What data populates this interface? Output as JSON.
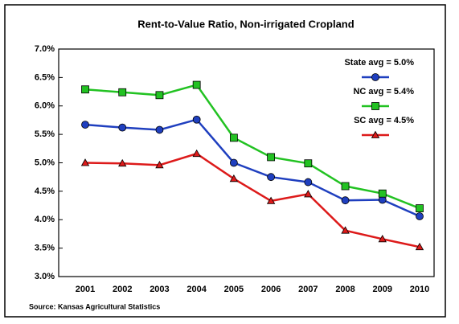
{
  "chart_data": {
    "type": "line",
    "title": "Rent-to-Value Ratio, Non-irrigated Cropland",
    "source": "Source:  Kansas Agricultural Statistics",
    "categories": [
      "2001",
      "2002",
      "2003",
      "2004",
      "2005",
      "2006",
      "2007",
      "2008",
      "2009",
      "2010"
    ],
    "series": [
      {
        "name": "State avg = 5.0%",
        "color": "#1f3fbf",
        "marker": "circle",
        "values": [
          5.67,
          5.62,
          5.58,
          5.76,
          5.0,
          4.75,
          4.66,
          4.34,
          4.35,
          4.06
        ]
      },
      {
        "name": "NC avg = 5.4%",
        "color": "#22c222",
        "marker": "square",
        "values": [
          6.29,
          6.24,
          6.19,
          6.37,
          5.44,
          5.1,
          4.99,
          4.59,
          4.46,
          4.2
        ]
      },
      {
        "name": "SC avg = 4.5%",
        "color": "#dd1a1a",
        "marker": "triangle",
        "values": [
          5.0,
          4.99,
          4.96,
          5.16,
          4.72,
          4.33,
          4.45,
          3.81,
          3.66,
          3.52
        ]
      }
    ],
    "ylim": [
      3.0,
      7.0
    ],
    "yticks": [
      {
        "value": 3.0,
        "label": "3.0%"
      },
      {
        "value": 3.5,
        "label": "3.5%"
      },
      {
        "value": 4.0,
        "label": "4.0%"
      },
      {
        "value": 4.5,
        "label": "4.5%"
      },
      {
        "value": 5.0,
        "label": "5.0%"
      },
      {
        "value": 5.5,
        "label": "5.5%"
      },
      {
        "value": 6.0,
        "label": "6.0%"
      },
      {
        "value": 6.5,
        "label": "6.5%"
      },
      {
        "value": 7.0,
        "label": "7.0%"
      }
    ],
    "legend": "top-right"
  }
}
